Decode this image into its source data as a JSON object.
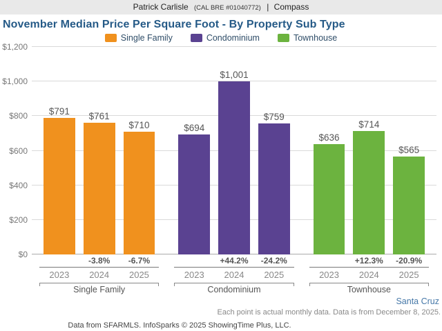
{
  "header": {
    "agent": "Patrick Carlisle",
    "license": "(CAL BRE #01040772)",
    "separator": "|",
    "brand": "Compass"
  },
  "title": "November Median Price Per Square Foot - By Property Sub Type",
  "footer": {
    "region": "Santa Cruz",
    "note": "Each point is actual monthly data. Data is from December 8, 2025.",
    "source": "Data from SFARMLS. InfoSparks © 2025 ShowingTime Plus, LLC."
  },
  "chart_data": {
    "type": "bar",
    "title": "November Median Price Per Square Foot - By Property Sub Type",
    "ylim": [
      0,
      1200
    ],
    "y_ticks": [
      0,
      200,
      400,
      600,
      800,
      1000,
      1200
    ],
    "y_tick_labels": [
      "$0",
      "$200",
      "$400",
      "$600",
      "$800",
      "$1,000",
      "$1,200"
    ],
    "grid": true,
    "legend_position": "top",
    "legend": [
      {
        "label": "Single Family",
        "color": "#f0911e"
      },
      {
        "label": "Condominium",
        "color": "#5a4291"
      },
      {
        "label": "Townhouse",
        "color": "#6cb33f"
      }
    ],
    "groups": [
      {
        "name": "Single Family",
        "color": "#f0911e",
        "years": [
          "2023",
          "2024",
          "2025"
        ],
        "values": [
          791,
          761,
          710
        ],
        "value_labels": [
          "$791",
          "$761",
          "$710"
        ],
        "pct_change": [
          "",
          "-3.8%",
          "-6.7%"
        ]
      },
      {
        "name": "Condominium",
        "color": "#5a4291",
        "years": [
          "2023",
          "2024",
          "2025"
        ],
        "values": [
          694,
          1001,
          759
        ],
        "value_labels": [
          "$694",
          "$1,001",
          "$759"
        ],
        "pct_change": [
          "",
          "+44.2%",
          "-24.2%"
        ]
      },
      {
        "name": "Townhouse",
        "color": "#6cb33f",
        "years": [
          "2023",
          "2024",
          "2025"
        ],
        "values": [
          636,
          714,
          565
        ],
        "value_labels": [
          "$636",
          "$714",
          "$565"
        ],
        "pct_change": [
          "",
          "+12.3%",
          "-20.9%"
        ]
      }
    ]
  }
}
